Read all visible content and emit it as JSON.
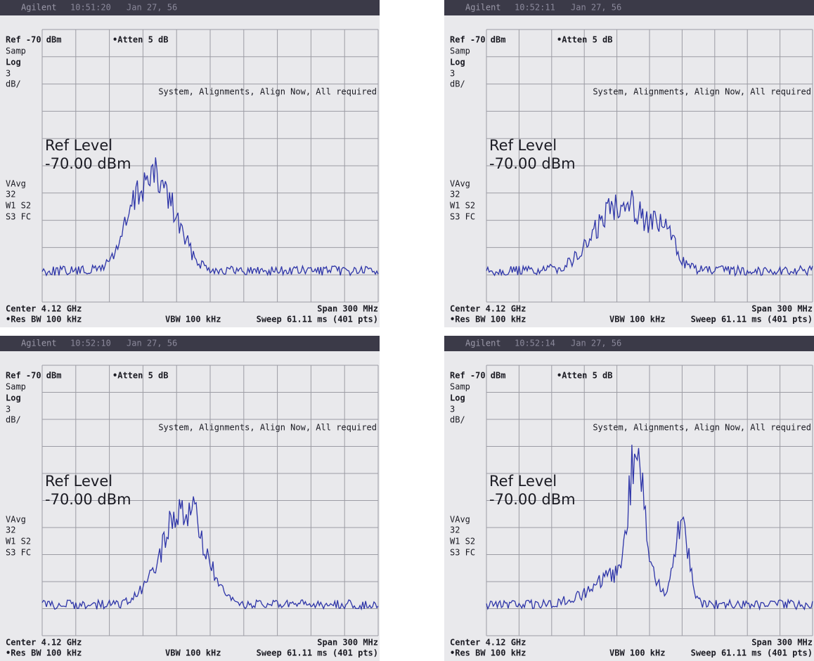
{
  "screens": [
    {
      "header": {
        "brand": "Agilent",
        "time": "10:51:20",
        "date": "Jan 27, 56"
      },
      "ref": "Ref -70 dBm",
      "atten": "•Atten 5 dB",
      "samp": "Samp",
      "scale_type": "Log",
      "scale_value": "3",
      "scale_unit": "dB/",
      "message": "System, Alignments, Align Now, All required",
      "ref_level_title": "Ref Level",
      "ref_level_value": "-70.00 dBm",
      "avg": "VAvg",
      "avg_count": "32",
      "trace_1": "W1 S2",
      "trace_2": "S3 FC",
      "center": "Center 4.12 GHz",
      "span": "Span 300 MHz",
      "res_bw": "•Res BW 100 kHz",
      "vbw": "VBW 100 kHz",
      "sweep": "Sweep 61.11 ms (401 pts)"
    },
    {
      "header": {
        "brand": "Agilent",
        "time": "10:52:11",
        "date": "Jan 27, 56"
      },
      "ref": "Ref -70 dBm",
      "atten": "•Atten 5 dB",
      "samp": "Samp",
      "scale_type": "Log",
      "scale_value": "3",
      "scale_unit": "dB/",
      "message": "System, Alignments, Align Now, All required",
      "ref_level_title": "Ref Level",
      "ref_level_value": "-70.00 dBm",
      "avg": "VAvg",
      "avg_count": "32",
      "trace_1": "W1 S2",
      "trace_2": "S3 FC",
      "center": "Center 4.12 GHz",
      "span": "Span 300 MHz",
      "res_bw": "•Res BW 100 kHz",
      "vbw": "VBW 100 kHz",
      "sweep": "Sweep 61.11 ms (401 pts)"
    },
    {
      "header": {
        "brand": "Agilent",
        "time": "10:52:10",
        "date": "Jan 27, 56"
      },
      "ref": "Ref -70 dBm",
      "atten": "•Atten 5 dB",
      "samp": "Samp",
      "scale_type": "Log",
      "scale_value": "3",
      "scale_unit": "dB/",
      "message": "System, Alignments, Align Now, All required",
      "ref_level_title": "Ref Level",
      "ref_level_value": "-70.00 dBm",
      "avg": "VAvg",
      "avg_count": "32",
      "trace_1": "W1 S2",
      "trace_2": "S3 FC",
      "center": "Center 4.12 GHz",
      "span": "Span 300 MHz",
      "res_bw": "•Res BW 100 kHz",
      "vbw": "VBW 100 kHz",
      "sweep": "Sweep 61.11 ms (401 pts)"
    },
    {
      "header": {
        "brand": "Agilent",
        "time": "10:52:14",
        "date": "Jan 27, 56"
      },
      "ref": "Ref -70 dBm",
      "atten": "•Atten 5 dB",
      "samp": "Samp",
      "scale_type": "Log",
      "scale_value": "3",
      "scale_unit": "dB/",
      "message": "System, Alignments, Align Now, All required",
      "ref_level_title": "Ref Level",
      "ref_level_value": "-70.00 dBm",
      "avg": "VAvg",
      "avg_count": "32",
      "trace_1": "W1 S2",
      "trace_2": "S3 FC",
      "center": "Center 4.12 GHz",
      "span": "Span 300 MHz",
      "res_bw": "•Res BW 100 kHz",
      "vbw": "VBW 100 kHz",
      "sweep": "Sweep 61.11 ms (401 pts)"
    }
  ]
}
